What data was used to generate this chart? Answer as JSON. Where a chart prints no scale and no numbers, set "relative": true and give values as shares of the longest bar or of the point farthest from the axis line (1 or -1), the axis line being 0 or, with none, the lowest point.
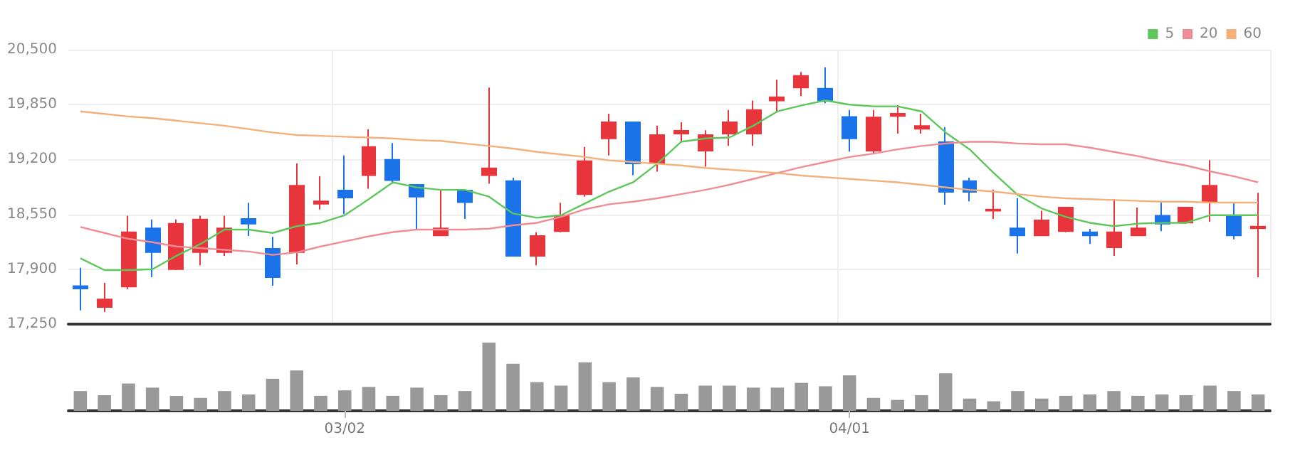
{
  "chart_data": [
    {
      "type": "candlestick",
      "categories": [
        null,
        null,
        null,
        null,
        null,
        null,
        null,
        null,
        null,
        null,
        null,
        null,
        null,
        null,
        null,
        null,
        null,
        null,
        null,
        null,
        null,
        null,
        null,
        null,
        null,
        null,
        null,
        null,
        null,
        null,
        null,
        null,
        null,
        null,
        null,
        null,
        null,
        null,
        null,
        null,
        null,
        null,
        null,
        null,
        null,
        null,
        null,
        null,
        null,
        null
      ],
      "ylim": [
        17250,
        20500
      ],
      "yticks": [
        {
          "value": 17250,
          "label": "17,250"
        },
        {
          "value": 17900,
          "label": "17,900"
        },
        {
          "value": 18550,
          "label": "18,550"
        },
        {
          "value": 19200,
          "label": "19,200"
        },
        {
          "value": 19850,
          "label": "19,850"
        },
        {
          "value": 20500,
          "label": "20,500"
        }
      ],
      "grid": true,
      "tick_labels": "y",
      "legend": "top right",
      "marker": "none",
      "series": [
        {
          "type": "candlestick",
          "ohlc": [
            [
              17700,
              17918,
              17413,
              17670
            ],
            [
              17452,
              17738,
              17396,
              17542
            ],
            [
              17694,
              18535,
              17665,
              18339
            ],
            [
              18384,
              18490,
              17806,
              18103
            ],
            [
              17901,
              18490,
              17890,
              18440
            ],
            [
              18103,
              18535,
              17946,
              18490
            ],
            [
              18103,
              18535,
              18058,
              18384
            ],
            [
              18496,
              18687,
              18294,
              18440
            ],
            [
              18143,
              18283,
              17705,
              17806
            ],
            [
              18103,
              19153,
              17957,
              18889
            ],
            [
              18676,
              19001,
              18608,
              18704
            ],
            [
              18833,
              19248,
              18552,
              18749
            ],
            [
              19013,
              19557,
              18855,
              19349
            ],
            [
              19198,
              19394,
              18912,
              18956
            ],
            [
              18900,
              18900,
              18367,
              18760
            ],
            [
              18300,
              18844,
              18300,
              18384
            ],
            [
              18833,
              18833,
              18496,
              18693
            ],
            [
              19013,
              20051,
              18912,
              19097
            ],
            [
              18945,
              18984,
              18058,
              18058
            ],
            [
              18058,
              18339,
              17946,
              18294
            ],
            [
              18350,
              18687,
              18339,
              18535
            ],
            [
              18788,
              19349,
              18760,
              19181
            ],
            [
              19450,
              19742,
              19248,
              19641
            ],
            [
              19641,
              19641,
              19013,
              19153
            ],
            [
              19153,
              19602,
              19057,
              19490
            ],
            [
              19507,
              19641,
              19406,
              19540
            ],
            [
              19304,
              19546,
              19114,
              19490
            ],
            [
              19507,
              19787,
              19361,
              19641
            ],
            [
              19507,
              19899,
              19361,
              19787
            ],
            [
              19899,
              20146,
              19754,
              19939
            ],
            [
              20051,
              20236,
              19950,
              20191
            ],
            [
              20040,
              20292,
              19866,
              19899
            ],
            [
              19704,
              19787,
              19293,
              19450
            ],
            [
              19304,
              19787,
              19265,
              19697
            ],
            [
              19714,
              19843,
              19507,
              19742
            ],
            [
              19563,
              19742,
              19507,
              19596
            ],
            [
              19406,
              19585,
              18665,
              18816
            ],
            [
              18945,
              18984,
              18704,
              18816
            ],
            [
              18592,
              18844,
              18496,
              18608
            ],
            [
              18384,
              18743,
              18086,
              18300
            ],
            [
              18300,
              18592,
              18300,
              18479
            ],
            [
              18350,
              18631,
              18339,
              18631
            ],
            [
              18339,
              18378,
              18199,
              18300
            ],
            [
              18159,
              18732,
              18058,
              18339
            ],
            [
              18300,
              18631,
              18300,
              18384
            ],
            [
              18535,
              18687,
              18350,
              18440
            ],
            [
              18451,
              18631,
              18440,
              18631
            ],
            [
              18704,
              19192,
              18462,
              18889
            ],
            [
              18535,
              18687,
              18255,
              18300
            ],
            [
              18384,
              18805,
              17806,
              18406
            ]
          ],
          "colors": [
            "#1a73e8",
            "#e8353b",
            "#e8353b",
            "#1a73e8",
            "#e8353b",
            "#e8353b",
            "#e8353b",
            "#1a73e8",
            "#1a73e8",
            "#e8353b",
            "#e8353b",
            "#1a73e8",
            "#e8353b",
            "#1a73e8",
            "#1a73e8",
            "#e8353b",
            "#1a73e8",
            "#e8353b",
            "#1a73e8",
            "#e8353b",
            "#e8353b",
            "#e8353b",
            "#e8353b",
            "#1a73e8",
            "#e8353b",
            "#e8353b",
            "#e8353b",
            "#e8353b",
            "#e8353b",
            "#e8353b",
            "#e8353b",
            "#1a73e8",
            "#1a73e8",
            "#e8353b",
            "#e8353b",
            "#e8353b",
            "#1a73e8",
            "#1a73e8",
            "#e8353b",
            "#1a73e8",
            "#e8353b",
            "#e8353b",
            "#1a73e8",
            "#e8353b",
            "#e8353b",
            "#1a73e8",
            "#e8353b",
            "#e8353b",
            "#1a73e8",
            "#e8353b"
          ]
        },
        {
          "type": "line",
          "name": "5",
          "color": "#5cc85c",
          "values": [
            18030,
            17890,
            17890,
            17900,
            18060,
            18200,
            18370,
            18370,
            18330,
            18410,
            18450,
            18540,
            18730,
            18930,
            18870,
            18840,
            18840,
            18760,
            18560,
            18510,
            18540,
            18680,
            18820,
            18930,
            19150,
            19410,
            19450,
            19460,
            19600,
            19770,
            19840,
            19900,
            19850,
            19830,
            19830,
            19770,
            19520,
            19320,
            19040,
            18780,
            18620,
            18520,
            18450,
            18410,
            18440,
            18450,
            18450,
            18540,
            18540,
            18540
          ]
        },
        {
          "type": "line",
          "name": "20",
          "color": "#f08c96",
          "values": [
            18400,
            18330,
            18260,
            18220,
            18170,
            18150,
            18130,
            18110,
            18070,
            18100,
            18170,
            18230,
            18290,
            18340,
            18370,
            18370,
            18370,
            18380,
            18420,
            18450,
            18520,
            18610,
            18670,
            18700,
            18740,
            18790,
            18840,
            18900,
            18970,
            19040,
            19110,
            19170,
            19230,
            19270,
            19320,
            19360,
            19390,
            19410,
            19410,
            19390,
            19380,
            19380,
            19340,
            19290,
            19240,
            19180,
            19130,
            19060,
            19000,
            18930
          ]
        },
        {
          "type": "line",
          "name": "60",
          "color": "#f5b07a",
          "values": [
            19770,
            19740,
            19710,
            19690,
            19660,
            19630,
            19600,
            19560,
            19520,
            19490,
            19480,
            19470,
            19460,
            19450,
            19430,
            19420,
            19390,
            19360,
            19330,
            19290,
            19260,
            19230,
            19190,
            19170,
            19150,
            19130,
            19100,
            19080,
            19060,
            19040,
            19010,
            18990,
            18970,
            18950,
            18930,
            18900,
            18870,
            18840,
            18820,
            18790,
            18760,
            18740,
            18730,
            18720,
            18710,
            18700,
            18700,
            18690,
            18690,
            18690
          ]
        }
      ]
    },
    {
      "type": "bar",
      "relative": true,
      "tick_labels": "x",
      "color": "#999999",
      "categories": [
        null,
        null,
        null,
        null,
        null,
        null,
        null,
        null,
        null,
        null,
        null,
        "03/02",
        null,
        null,
        null,
        null,
        null,
        null,
        null,
        null,
        null,
        null,
        null,
        null,
        null,
        null,
        null,
        null,
        null,
        null,
        null,
        null,
        "04/01",
        null,
        null,
        null,
        null,
        null,
        null,
        null,
        null,
        null,
        null,
        null,
        null,
        null,
        null,
        null,
        null,
        null
      ],
      "values": [
        0.29,
        0.23,
        0.4,
        0.34,
        0.22,
        0.19,
        0.29,
        0.24,
        0.47,
        0.59,
        0.22,
        0.3,
        0.35,
        0.22,
        0.34,
        0.23,
        0.29,
        1,
        0.69,
        0.42,
        0.37,
        0.71,
        0.42,
        0.49,
        0.35,
        0.25,
        0.37,
        0.37,
        0.34,
        0.34,
        0.41,
        0.36,
        0.52,
        0.19,
        0.16,
        0.23,
        0.55,
        0.18,
        0.14,
        0.29,
        0.18,
        0.22,
        0.24,
        0.29,
        0.22,
        0.24,
        0.23,
        0.37,
        0.29,
        0.24
      ]
    }
  ]
}
